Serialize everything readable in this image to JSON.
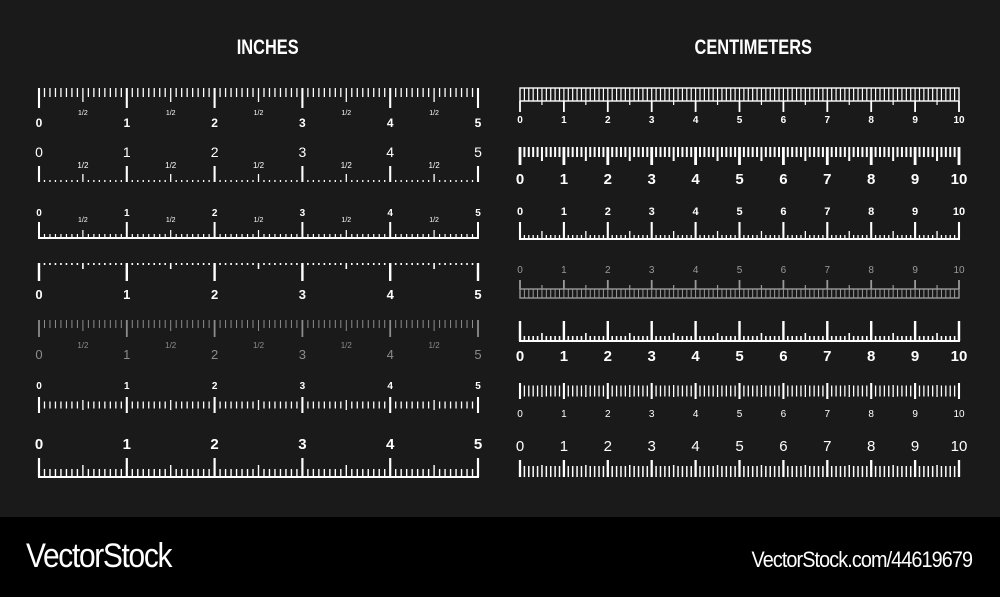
{
  "inches": {
    "title": "INCHES",
    "rulers": [
      {
        "labels": [
          "0",
          "1",
          "2",
          "3",
          "4",
          "5"
        ],
        "half_label": "1/2"
      },
      {
        "labels": [
          "0",
          "1",
          "2",
          "3",
          "4",
          "5"
        ],
        "half_label": "1/2"
      },
      {
        "labels": [
          "0",
          "1",
          "2",
          "3",
          "4",
          "5"
        ],
        "half_label": "1/2"
      },
      {
        "labels": [
          "0",
          "1",
          "2",
          "3",
          "4",
          "5"
        ],
        "half_label": ""
      },
      {
        "labels": [
          "0",
          "1",
          "2",
          "3",
          "4",
          "5"
        ],
        "half_label": "1/2"
      },
      {
        "labels": [
          "0",
          "1",
          "2",
          "3",
          "4",
          "5"
        ],
        "half_label": ""
      },
      {
        "labels": [
          "0",
          "1",
          "2",
          "3",
          "4",
          "5"
        ],
        "half_label": ""
      }
    ]
  },
  "centimeters": {
    "title": "CENTIMETERS",
    "rulers": [
      {
        "labels": [
          "0",
          "1",
          "2",
          "3",
          "4",
          "5",
          "6",
          "7",
          "8",
          "9",
          "10"
        ]
      },
      {
        "labels": [
          "0",
          "1",
          "2",
          "3",
          "4",
          "5",
          "6",
          "7",
          "8",
          "9",
          "10"
        ]
      },
      {
        "labels": [
          "0",
          "1",
          "2",
          "3",
          "4",
          "5",
          "6",
          "7",
          "8",
          "9",
          "10"
        ]
      },
      {
        "labels": [
          "0",
          "1",
          "2",
          "3",
          "4",
          "5",
          "6",
          "7",
          "8",
          "9",
          "10"
        ]
      },
      {
        "labels": [
          "0",
          "1",
          "2",
          "3",
          "4",
          "5",
          "6",
          "7",
          "8",
          "9",
          "10"
        ]
      },
      {
        "labels": [
          "0",
          "1",
          "2",
          "3",
          "4",
          "5",
          "6",
          "7",
          "8",
          "9",
          "10"
        ]
      },
      {
        "labels": [
          "0",
          "1",
          "2",
          "3",
          "4",
          "5",
          "6",
          "7",
          "8",
          "9",
          "10"
        ]
      }
    ]
  },
  "colors": {
    "background": "#1a1a1a",
    "ink": "#ffffff",
    "faded": "#8c8c8c",
    "footer": "#000000"
  },
  "footer": {
    "logo": "VectorStock",
    "reference": "VectorStock.com/44619679"
  }
}
